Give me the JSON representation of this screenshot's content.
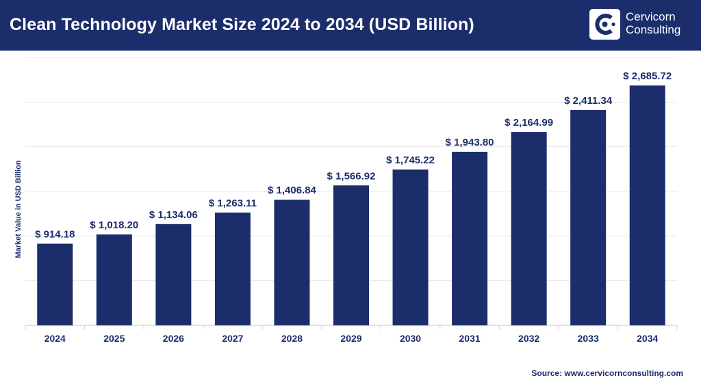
{
  "header": {
    "title": "Clean Technology Market Size 2024 to 2034 (USD Billion)",
    "logo_line1": "Cervicorn",
    "logo_line2": "Consulting",
    "logo_icon": "cervicorn-logo-icon"
  },
  "source": "Source: www.cervicornconsulting.com",
  "colors": {
    "header_bg": "#1b2d6b",
    "bar": "#1b2d6b",
    "label": "#1b2d6b",
    "grid": "#e8e8e8"
  },
  "chart_data": {
    "type": "bar",
    "title": "Clean Technology Market Size 2024 to 2034 (USD Billion)",
    "xlabel": "",
    "ylabel": "Market Value in USD Billion",
    "categories": [
      "2024",
      "2025",
      "2026",
      "2027",
      "2028",
      "2029",
      "2030",
      "2031",
      "2032",
      "2033",
      "2034"
    ],
    "values": [
      914.18,
      1018.2,
      1134.06,
      1263.11,
      1406.84,
      1566.92,
      1745.22,
      1943.8,
      2164.99,
      2411.34,
      2685.72
    ],
    "value_labels": [
      "$ 914.18",
      "$ 1,018.20",
      "$ 1,134.06",
      "$ 1,263.11",
      "$ 1,406.84",
      "$ 1,566.92",
      "$ 1,745.22",
      "$ 1,943.80",
      "$ 2,164.99",
      "$ 2,411.34",
      "$ 2,685.72"
    ],
    "ylim": [
      0,
      3000
    ],
    "grid": true,
    "legend": "none"
  }
}
